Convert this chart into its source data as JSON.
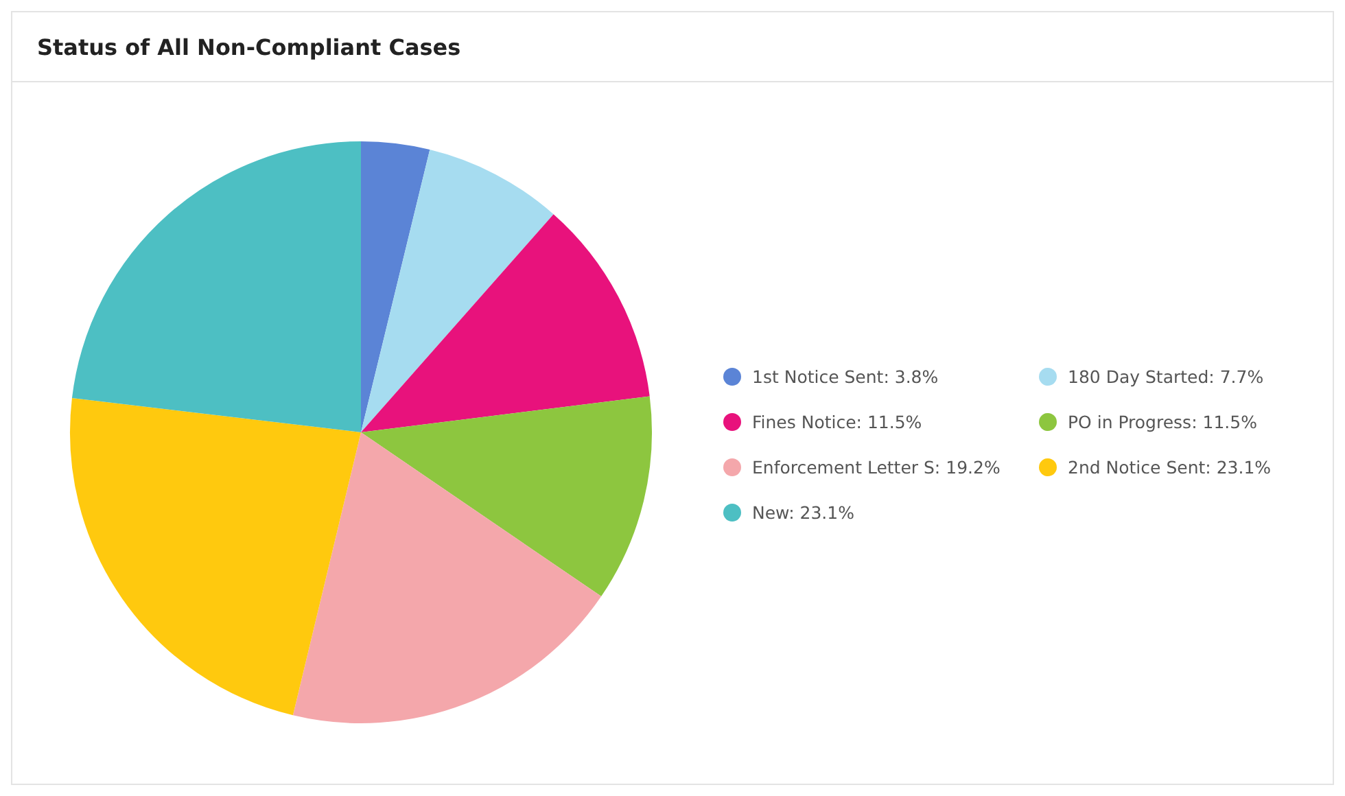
{
  "chart_data": {
    "type": "pie",
    "title": "Status of All Non-Compliant Cases",
    "categories": [
      "1st Notice Sent",
      "180 Day Started",
      "Fines Notice",
      "PO in Progress",
      "Enforcement Letter S",
      "2nd Notice Sent",
      "New"
    ],
    "values": [
      3.8,
      7.7,
      11.5,
      11.5,
      19.2,
      23.1,
      23.1
    ],
    "value_labels": [
      "3.8%",
      "7.7%",
      "11.5%",
      "11.5%",
      "19.2%",
      "23.1%",
      "23.1%"
    ],
    "colors": [
      "#5b84d6",
      "#a6dcf0",
      "#e8127c",
      "#8dc63f",
      "#f4a7ab",
      "#ffc90e",
      "#4dbfc3"
    ],
    "legend": "right"
  }
}
